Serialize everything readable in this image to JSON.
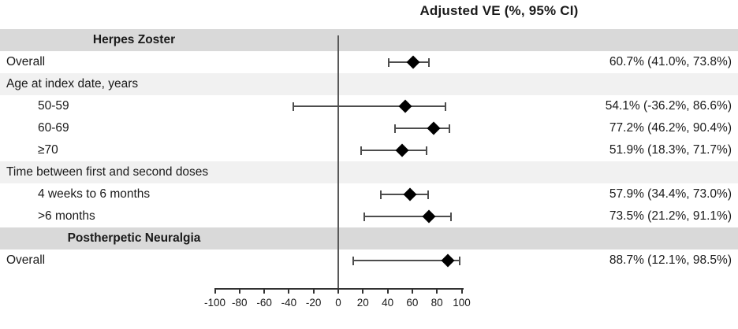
{
  "title": "Adjusted VE (%, 95% CI)",
  "colors": {
    "section_band": "#d9d9d9",
    "subsection_band": "#f1f1f1",
    "marker": "#000000",
    "ci_line": "#4d4d4d",
    "zero_line": "#595959",
    "axis": "#333333",
    "text": "#1a1a1a"
  },
  "chart_data": {
    "type": "forest",
    "title": "Adjusted VE (%, 95% CI)",
    "x_axis": {
      "ticks": [
        -100,
        -80,
        -60,
        -40,
        -20,
        0,
        20,
        40,
        60,
        80,
        100
      ],
      "range": [
        -100,
        100
      ],
      "zero_reference_line": 0,
      "grid": false
    },
    "rows": [
      {
        "kind": "section",
        "label": "Herpes Zoster"
      },
      {
        "kind": "data",
        "label": "Overall",
        "indent": 0,
        "estimate": 60.7,
        "ci_low": 41.0,
        "ci_high": 73.8,
        "value_text": "60.7% (41.0%, 73.8%)"
      },
      {
        "kind": "subsection",
        "label": "Age at index date, years"
      },
      {
        "kind": "data",
        "label": "50-59",
        "indent": 1,
        "estimate": 54.1,
        "ci_low": -36.2,
        "ci_high": 86.6,
        "value_text": "54.1% (-36.2%, 86.6%)"
      },
      {
        "kind": "data",
        "label": "60-69",
        "indent": 1,
        "estimate": 77.2,
        "ci_low": 46.2,
        "ci_high": 90.4,
        "value_text": "77.2% (46.2%, 90.4%)"
      },
      {
        "kind": "data",
        "label": "≥70",
        "indent": 1,
        "estimate": 51.9,
        "ci_low": 18.3,
        "ci_high": 71.7,
        "value_text": "51.9% (18.3%, 71.7%)"
      },
      {
        "kind": "subsection",
        "label": "Time between first and second doses"
      },
      {
        "kind": "data",
        "label": "4 weeks to 6 months",
        "indent": 1,
        "estimate": 57.9,
        "ci_low": 34.4,
        "ci_high": 73.0,
        "value_text": "57.9% (34.4%, 73.0%)"
      },
      {
        "kind": "data",
        "label": ">6 months",
        "indent": 1,
        "estimate": 73.5,
        "ci_low": 21.2,
        "ci_high": 91.1,
        "value_text": "73.5% (21.2%, 91.1%)"
      },
      {
        "kind": "section",
        "label": "Postherpetic Neuralgia"
      },
      {
        "kind": "data",
        "label": "Overall",
        "indent": 0,
        "estimate": 88.7,
        "ci_low": 12.1,
        "ci_high": 98.5,
        "value_text": "88.7% (12.1%, 98.5%)"
      }
    ]
  }
}
